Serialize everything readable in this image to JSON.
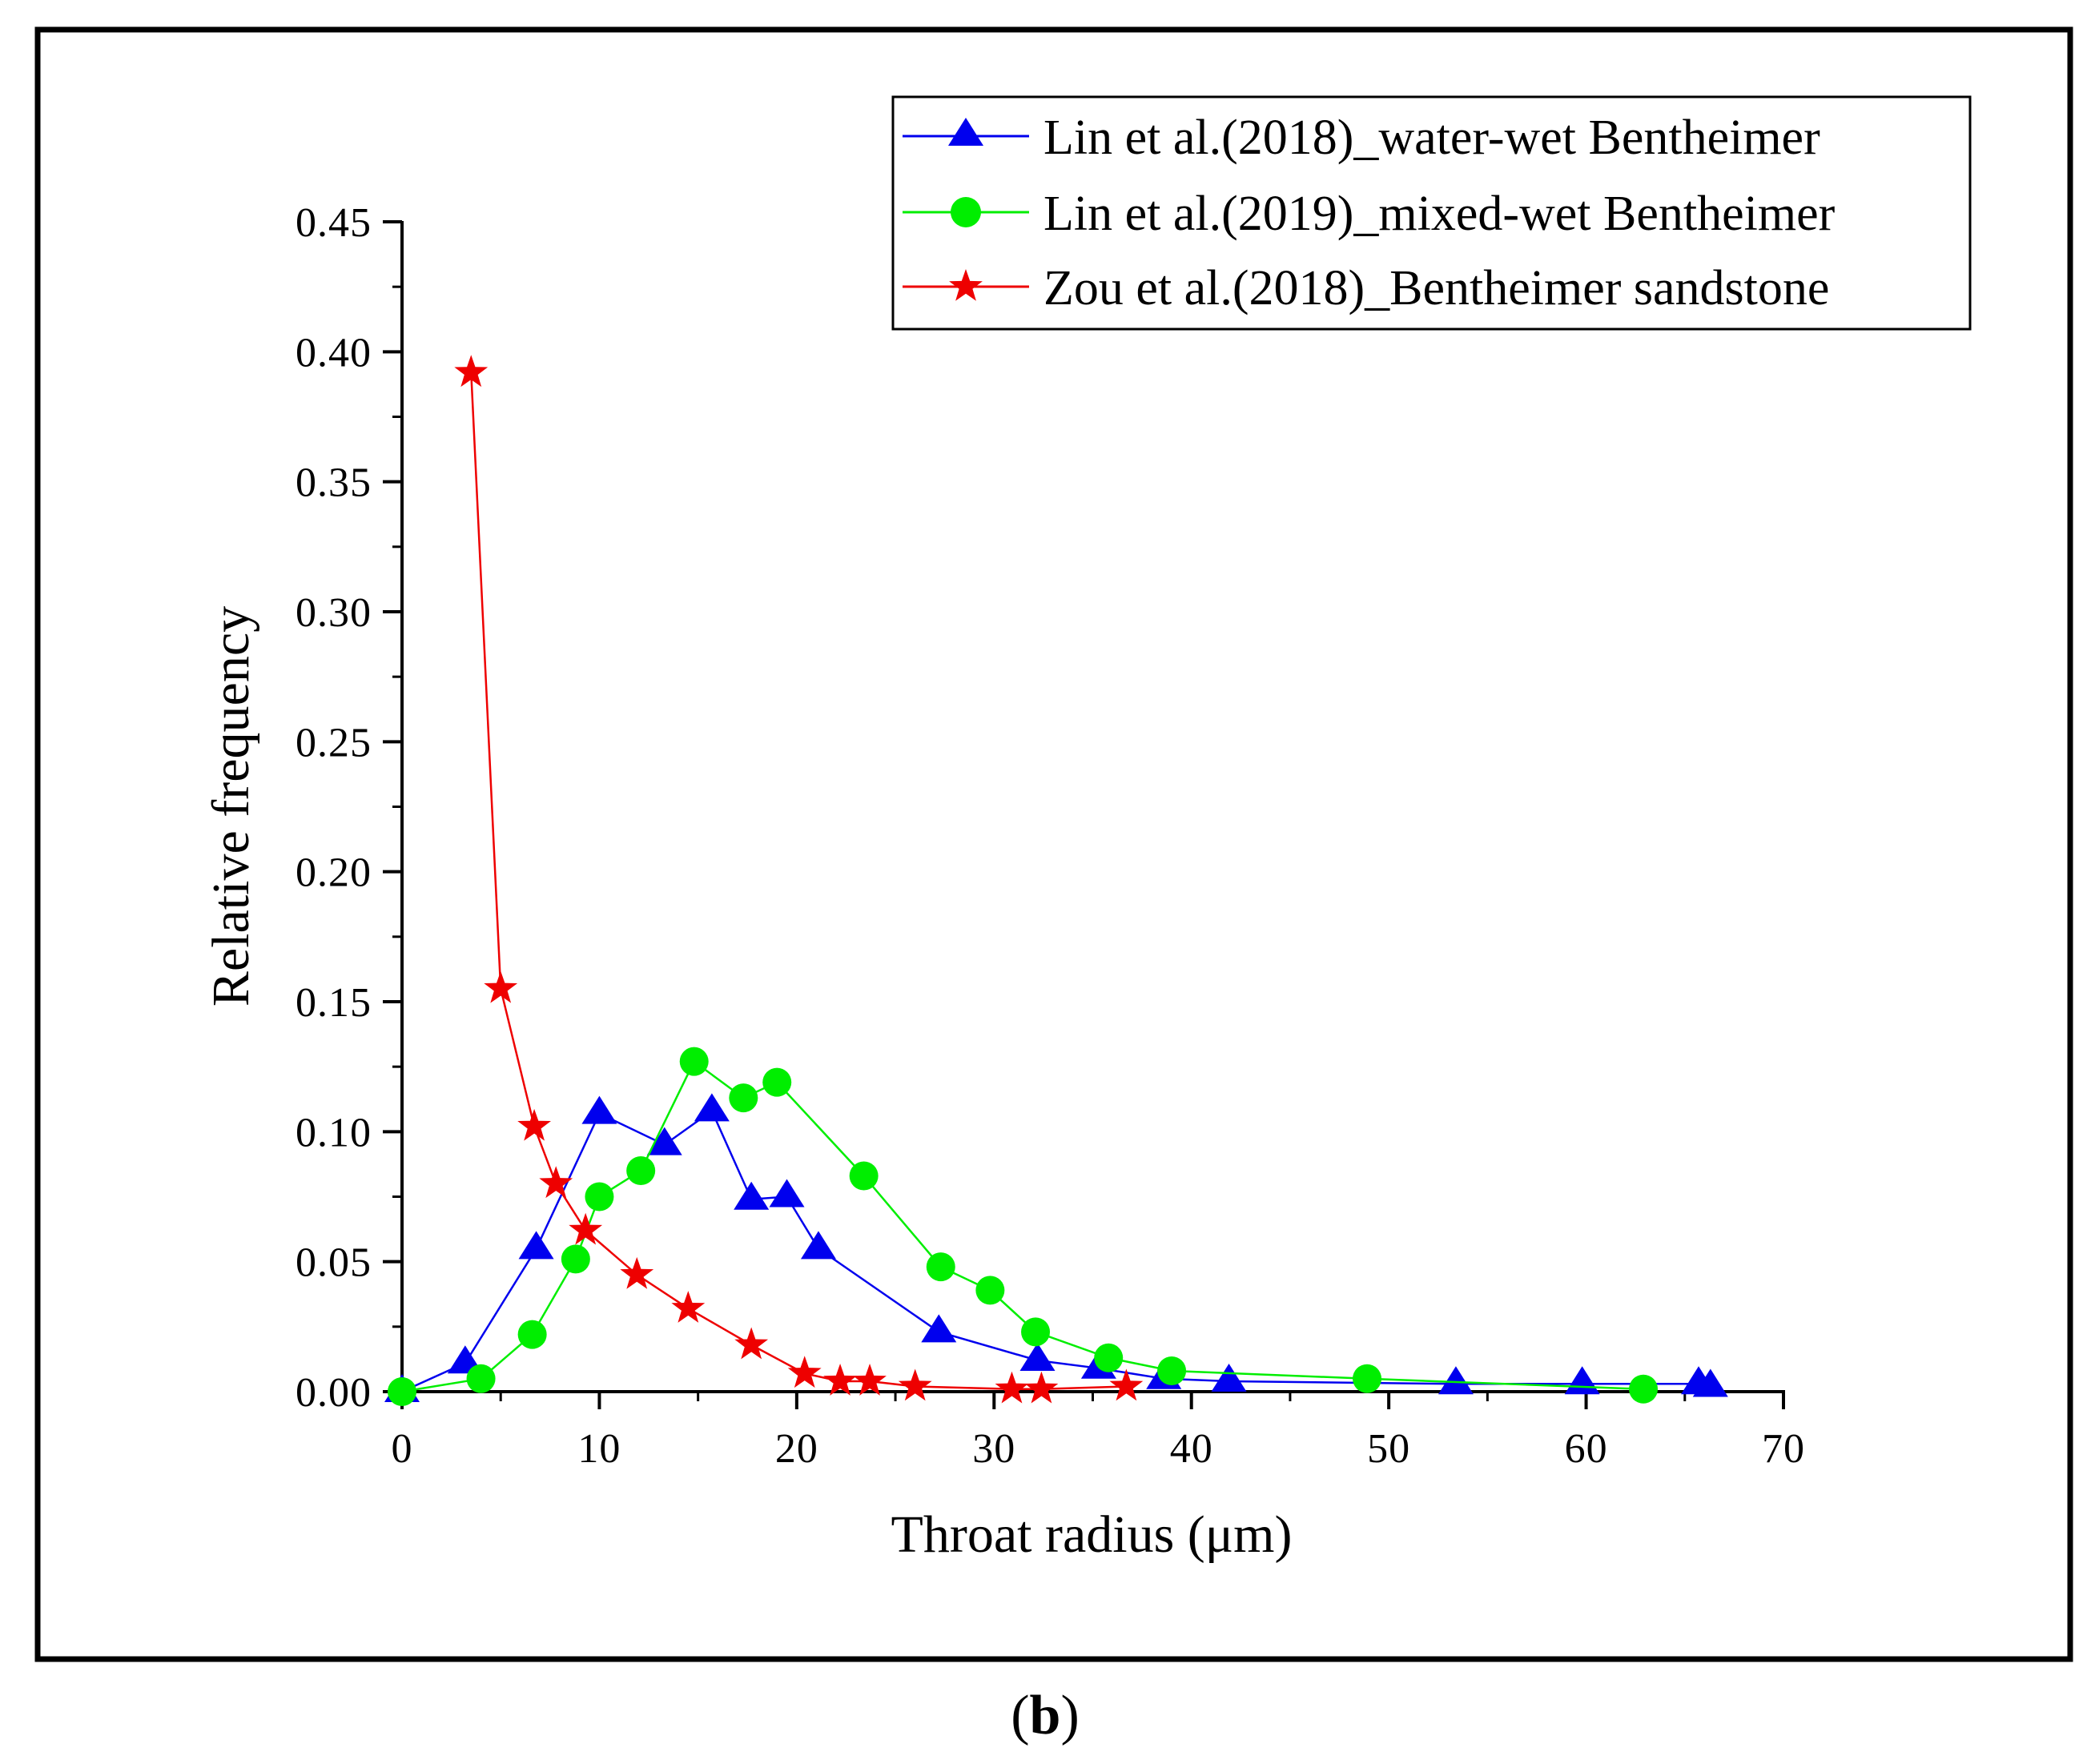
{
  "chart_data": {
    "type": "line",
    "title": "",
    "xlabel": "Throat radius (μm)",
    "ylabel": "Relative frequency",
    "xlim": [
      0,
      70
    ],
    "ylim": [
      0,
      0.45
    ],
    "x_ticks": [
      "0",
      "10",
      "20",
      "30",
      "40",
      "50",
      "60",
      "70"
    ],
    "x_tick_values": [
      0,
      10,
      20,
      30,
      40,
      50,
      60,
      70
    ],
    "y_ticks": [
      "0.00",
      "0.05",
      "0.10",
      "0.15",
      "0.20",
      "0.25",
      "0.30",
      "0.35",
      "0.40",
      "0.45"
    ],
    "y_tick_values": [
      0,
      0.05,
      0.1,
      0.15,
      0.2,
      0.25,
      0.3,
      0.35,
      0.4,
      0.45
    ],
    "grid": false,
    "legend_position": "top-right",
    "series": [
      {
        "name": "Lin et al.(2018)_water-wet Bentheimer",
        "color": "#0000ee",
        "marker": "triangle",
        "x": [
          0,
          3.2,
          6.8,
          10.0,
          13.3,
          15.7,
          17.7,
          19.5,
          21.1,
          27.2,
          32.2,
          35.3,
          38.6,
          41.9,
          53.4,
          59.8,
          65.7,
          66.3
        ],
        "y": [
          0.0,
          0.011,
          0.055,
          0.107,
          0.095,
          0.108,
          0.074,
          0.075,
          0.055,
          0.023,
          0.012,
          0.009,
          0.005,
          0.004,
          0.003,
          0.003,
          0.003,
          0.002
        ]
      },
      {
        "name": "Lin et al.(2019)_mixed-wet Bentheimer",
        "color": "#00ee00",
        "marker": "circle",
        "x": [
          0,
          4.0,
          6.6,
          8.8,
          10.0,
          12.1,
          14.8,
          17.3,
          19.0,
          23.4,
          27.3,
          29.8,
          32.1,
          35.8,
          39.0,
          48.9,
          62.9
        ],
        "y": [
          0.0,
          0.005,
          0.022,
          0.051,
          0.075,
          0.085,
          0.127,
          0.113,
          0.119,
          0.083,
          0.048,
          0.039,
          0.023,
          0.013,
          0.008,
          0.005,
          0.001
        ]
      },
      {
        "name": "Zou et al.(2018)_Bentheimer sandstone",
        "color": "#ee0000",
        "marker": "star",
        "x": [
          3.5,
          5.0,
          6.7,
          7.8,
          9.3,
          11.9,
          14.5,
          17.7,
          20.4,
          22.2,
          23.7,
          26.0,
          30.9,
          32.4,
          36.7
        ],
        "y": [
          0.392,
          0.155,
          0.102,
          0.08,
          0.062,
          0.045,
          0.032,
          0.018,
          0.007,
          0.004,
          0.004,
          0.002,
          0.001,
          0.001,
          0.002
        ]
      }
    ]
  },
  "caption": {
    "open": "(",
    "letter": "b",
    "close": ")"
  }
}
